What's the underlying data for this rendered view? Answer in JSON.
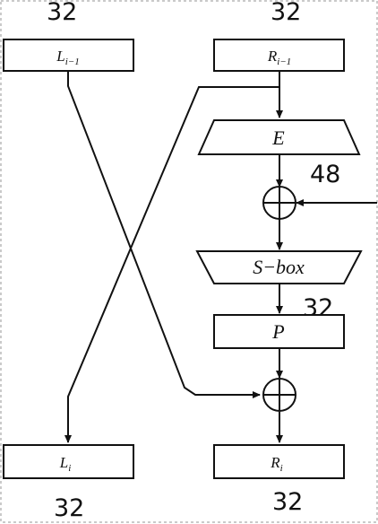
{
  "labels": {
    "top_left_bits": "32",
    "top_right_bits": "32",
    "expansion_bits": "48",
    "sbox_out_bits": "32",
    "bottom_left_bits": "32",
    "bottom_right_bits": "32"
  },
  "boxes": {
    "l_prev": {
      "letter": "L",
      "sub": "i−1"
    },
    "r_prev": {
      "letter": "R",
      "sub": "i−1"
    },
    "expansion": "E",
    "sbox": "S−box",
    "permutation": "P",
    "l_next": {
      "letter": "L",
      "sub": "i"
    },
    "r_next": {
      "letter": "R",
      "sub": "i"
    }
  }
}
